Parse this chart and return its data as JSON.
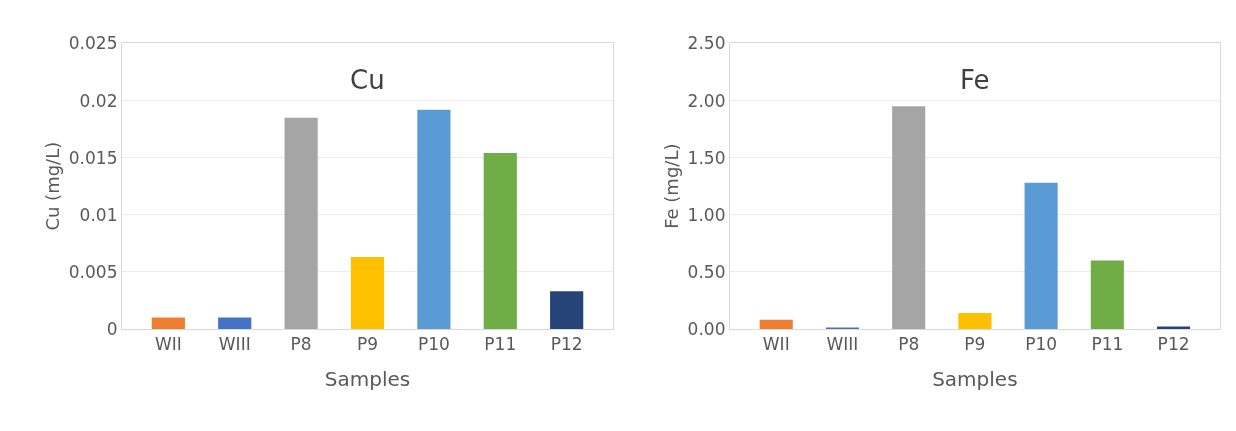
{
  "chart_data": [
    {
      "type": "bar",
      "title": "Cu",
      "xlabel": "Samples",
      "ylabel": "Cu (mg/L)",
      "categories": [
        "WII",
        "WIII",
        "P8",
        "P9",
        "P10",
        "P11",
        "P12"
      ],
      "values": [
        0.001,
        0.001,
        0.0185,
        0.0063,
        0.0192,
        0.0154,
        0.0033
      ],
      "colors": [
        "#ed7d31",
        "#4472c4",
        "#a5a5a5",
        "#ffc000",
        "#5b9bd5",
        "#70ad47",
        "#264478"
      ],
      "ylim": [
        0,
        0.025
      ],
      "yticks": [
        0,
        0.005,
        0.01,
        0.015,
        0.02,
        0.025
      ],
      "grid": "y"
    },
    {
      "type": "bar",
      "title": "Fe",
      "xlabel": "Samples",
      "ylabel": "Fe (mg/L)",
      "categories": [
        "WII",
        "WIII",
        "P8",
        "P9",
        "P10",
        "P11",
        "P12"
      ],
      "values": [
        0.08,
        0.01,
        1.95,
        0.14,
        1.28,
        0.6,
        0.02
      ],
      "colors": [
        "#ed7d31",
        "#4472c4",
        "#a5a5a5",
        "#ffc000",
        "#5b9bd5",
        "#70ad47",
        "#264478"
      ],
      "ylim": [
        0,
        2.5
      ],
      "yticks": [
        {
          "value": 0,
          "label": "0.00"
        },
        {
          "value": 0.5,
          "label": "0.50"
        },
        {
          "value": 1,
          "label": "1.00"
        },
        {
          "value": 1.5,
          "label": "1.50"
        },
        {
          "value": 2,
          "label": "2.00"
        },
        {
          "value": 2.5,
          "label": "2.50"
        }
      ],
      "grid": "y"
    }
  ]
}
